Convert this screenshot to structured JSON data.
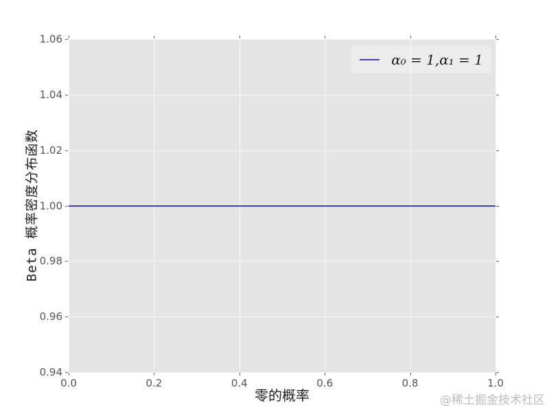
{
  "chart_data": {
    "type": "line",
    "title": "",
    "xlabel": "零的概率",
    "ylabel": "Beta 概率密度分布函数",
    "xlim": [
      0.0,
      1.0
    ],
    "ylim": [
      0.94,
      1.06
    ],
    "x_ticks": [
      0.0,
      0.2,
      0.4,
      0.6,
      0.8,
      1.0
    ],
    "x_tick_labels": [
      "0.0",
      "0.2",
      "0.4",
      "0.6",
      "0.8",
      "1.0"
    ],
    "y_ticks": [
      0.94,
      0.96,
      0.98,
      1.0,
      1.02,
      1.04,
      1.06
    ],
    "y_tick_labels": [
      "0.94",
      "0.96",
      "0.98",
      "1.00",
      "1.02",
      "1.04",
      "1.06"
    ],
    "grid": true,
    "legend": {
      "position": "upper right",
      "entries": [
        {
          "label": "α₀ = 1,α₁ = 1",
          "color": "#3c40c0"
        }
      ]
    },
    "series": [
      {
        "name": "α₀ = 1,α₁ = 1",
        "color": "#3c40c0",
        "x": [
          0.0,
          1.0
        ],
        "y": [
          1.0,
          1.0
        ]
      }
    ]
  },
  "watermark": "@稀土掘金技术社区",
  "colors": {
    "figure_bg": "#ffffff",
    "plot_bg": "#e4e4e4",
    "grid": "#f7f7f7",
    "tick_mark": "#666666",
    "tick_label": "#555555",
    "axis_label": "#1c1c1c",
    "line": "#3c40c0",
    "watermark": "#bcbcbc"
  }
}
